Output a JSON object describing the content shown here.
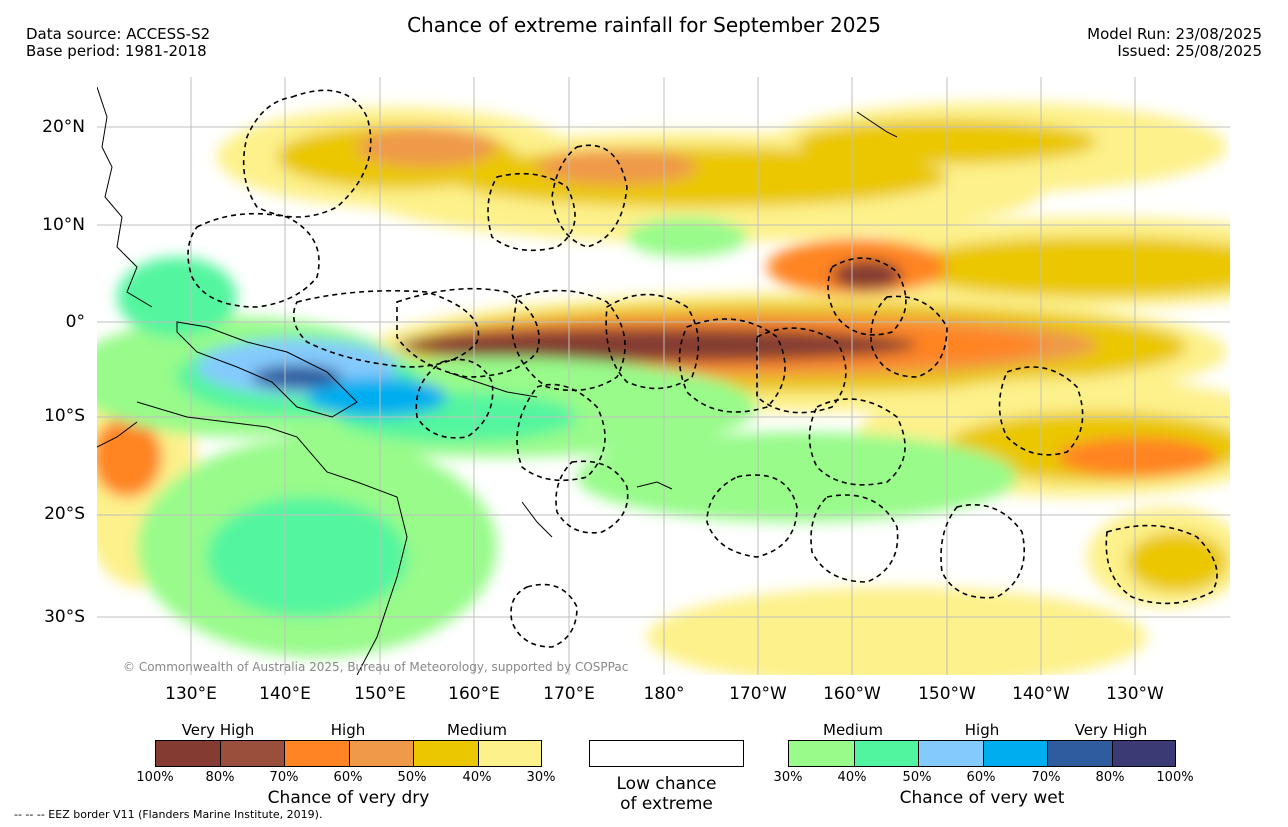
{
  "header": {
    "title": "Chance of extreme rainfall for September 2025",
    "data_source": "Data source: ACCESS-S2",
    "base_period": "Base period: 1981-2018",
    "model_run": "Model Run: 23/08/2025",
    "issued": "Issued: 25/08/2025"
  },
  "map": {
    "lat_labels": [
      "20°N",
      "10°N",
      "0°",
      "10°S",
      "20°S",
      "30°S"
    ],
    "lon_labels": [
      "130°E",
      "140°E",
      "150°E",
      "160°E",
      "170°E",
      "180°",
      "170°W",
      "160°W",
      "150°W",
      "140°W",
      "130°W"
    ],
    "credit": "© Commonwealth of Australia 2025, Bureau of Meteorology, supported by COSPPac"
  },
  "legend": {
    "dry": {
      "headers": [
        "Very High",
        "High",
        "Medium"
      ],
      "ticks": [
        "100%",
        "80%",
        "70%",
        "60%",
        "50%",
        "40%",
        "30%"
      ],
      "caption": "Chance of very dry",
      "colors": [
        "#843c32",
        "#9a4e3c",
        "#ff8424",
        "#ef9a48",
        "#eac700",
        "#fdf18b"
      ]
    },
    "low": {
      "caption_line1": "Low chance",
      "caption_line2": "of extreme"
    },
    "wet": {
      "headers": [
        "Medium",
        "High",
        "Very High"
      ],
      "ticks": [
        "30%",
        "40%",
        "50%",
        "60%",
        "70%",
        "80%",
        "100%"
      ],
      "caption": "Chance of very wet",
      "colors": [
        "#98fb8a",
        "#52f59f",
        "#85cafd",
        "#00aeef",
        "#2f5c9e",
        "#3b3a74"
      ]
    }
  },
  "footnote": "-- -- -- EEZ border V11 (Flanders Marine Institute, 2019)."
}
